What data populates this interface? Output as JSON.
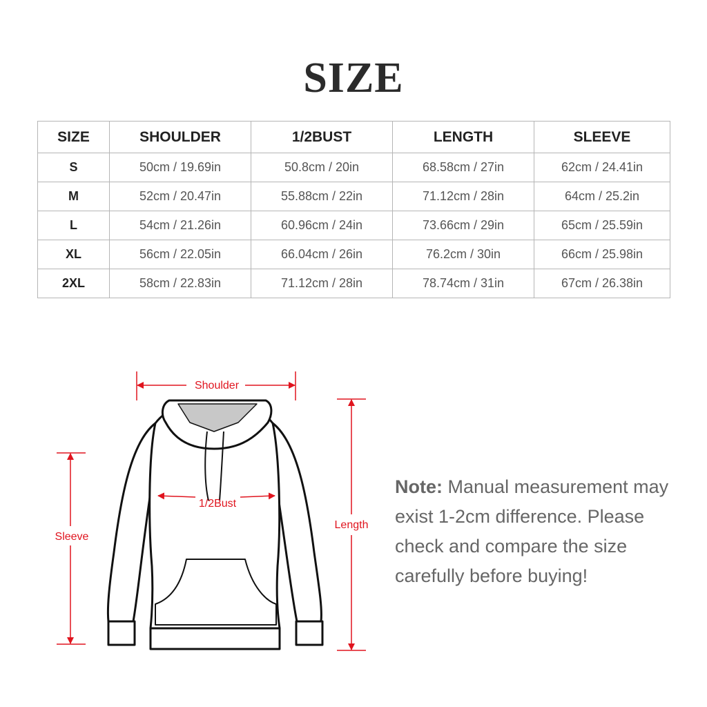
{
  "title": "SIZE",
  "table": {
    "headers": [
      "SIZE",
      "SHOULDER",
      "1/2BUST",
      "LENGTH",
      "SLEEVE"
    ],
    "rows": [
      [
        "S",
        "50cm / 19.69in",
        "50.8cm / 20in",
        "68.58cm / 27in",
        "62cm / 24.41in"
      ],
      [
        "M",
        "52cm / 20.47in",
        "55.88cm / 22in",
        "71.12cm / 28in",
        "64cm / 25.2in"
      ],
      [
        "L",
        "54cm / 21.26in",
        "60.96cm / 24in",
        "73.66cm / 29in",
        "65cm / 25.59in"
      ],
      [
        "XL",
        "56cm / 22.05in",
        "66.04cm / 26in",
        "76.2cm / 30in",
        "66cm / 25.98in"
      ],
      [
        "2XL",
        "58cm / 22.83in",
        "71.12cm / 28in",
        "78.74cm / 31in",
        "67cm / 26.38in"
      ]
    ]
  },
  "diagram": {
    "shoulder": "Shoulder",
    "bust": "1/2Bust",
    "length": "Length",
    "sleeve": "Sleeve",
    "measure_color": "#e0141e"
  },
  "note": {
    "label": "Note:",
    "text": "Manual measurement may exist 1-2cm difference. Please check and compare the size carefully before buying!"
  }
}
